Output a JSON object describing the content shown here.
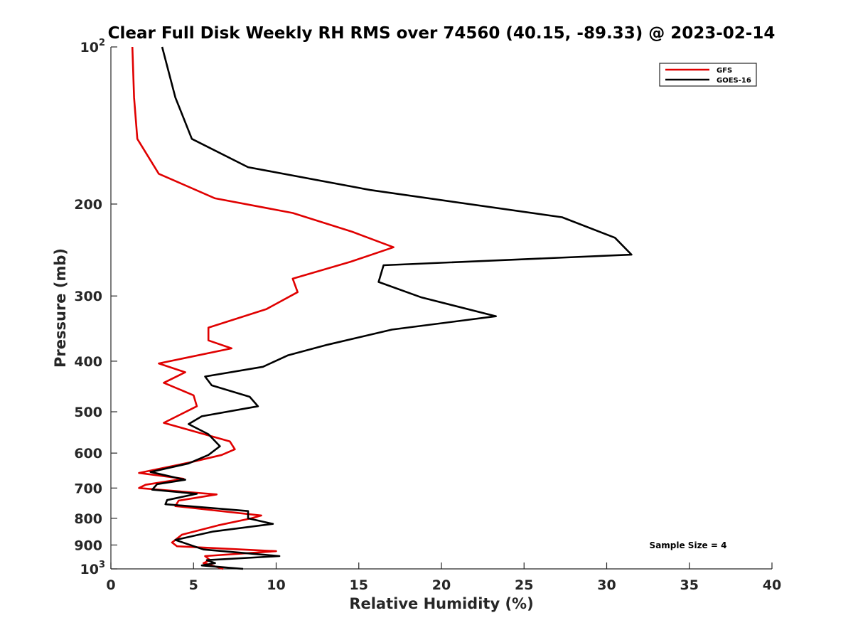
{
  "chart_data": {
    "type": "line",
    "title": "Clear Full Disk Weekly RH RMS over 74560 (40.15, -89.33) @ 2023-02-14",
    "xlabel": "Relative Humidity (%)",
    "ylabel": "Pressure (mb)",
    "xlim": [
      0,
      40
    ],
    "ylim": [
      100,
      1000
    ],
    "y_scale": "log",
    "y_reversed": true,
    "x_ticks": [
      0,
      5,
      10,
      15,
      20,
      25,
      30,
      35,
      40
    ],
    "y_ticks": [
      {
        "value": 100,
        "label": "10",
        "sup": "2"
      },
      {
        "value": 200,
        "label": "200"
      },
      {
        "value": 300,
        "label": "300"
      },
      {
        "value": 400,
        "label": "400"
      },
      {
        "value": 500,
        "label": "500"
      },
      {
        "value": 600,
        "label": "600"
      },
      {
        "value": 700,
        "label": "700"
      },
      {
        "value": 800,
        "label": "800"
      },
      {
        "value": 900,
        "label": "900"
      },
      {
        "value": 1000,
        "label": "10",
        "sup": "3"
      }
    ],
    "grid": false,
    "legend_position": "top-right",
    "annotation": "Sample Size = 4",
    "series": [
      {
        "name": "GFS",
        "color": "#e00000",
        "points": [
          [
            1.3,
            100
          ],
          [
            1.4,
            125
          ],
          [
            1.6,
            150
          ],
          [
            2.9,
            175
          ],
          [
            6.3,
            195
          ],
          [
            11.0,
            208
          ],
          [
            14.6,
            226
          ],
          [
            17.1,
            242
          ],
          [
            14.5,
            258
          ],
          [
            11.0,
            278
          ],
          [
            11.3,
            295
          ],
          [
            9.4,
            318
          ],
          [
            5.9,
            345
          ],
          [
            5.9,
            365
          ],
          [
            7.3,
            378
          ],
          [
            2.9,
            404
          ],
          [
            4.5,
            420
          ],
          [
            3.2,
            440
          ],
          [
            5.0,
            465
          ],
          [
            5.2,
            488
          ],
          [
            3.2,
            525
          ],
          [
            7.2,
            570
          ],
          [
            7.5,
            590
          ],
          [
            6.7,
            605
          ],
          [
            4.8,
            625
          ],
          [
            1.7,
            655
          ],
          [
            4.4,
            672
          ],
          [
            2.1,
            690
          ],
          [
            1.7,
            700
          ],
          [
            6.4,
            720
          ],
          [
            4.1,
            740
          ],
          [
            3.9,
            758
          ],
          [
            9.1,
            790
          ],
          [
            8.5,
            800
          ],
          [
            6.5,
            825
          ],
          [
            4.3,
            860
          ],
          [
            3.7,
            890
          ],
          [
            4.0,
            905
          ],
          [
            10.0,
            925
          ],
          [
            5.7,
            945
          ],
          [
            6.0,
            962
          ],
          [
            5.6,
            975
          ],
          [
            6.8,
            1000
          ]
        ]
      },
      {
        "name": "GOES-16",
        "color": "#000000",
        "points": [
          [
            3.1,
            100
          ],
          [
            3.9,
            125
          ],
          [
            4.9,
            150
          ],
          [
            8.3,
            170
          ],
          [
            15.7,
            188
          ],
          [
            27.3,
            212
          ],
          [
            30.5,
            232
          ],
          [
            31.5,
            250
          ],
          [
            16.5,
            262
          ],
          [
            16.2,
            282
          ],
          [
            18.8,
            302
          ],
          [
            23.3,
            328
          ],
          [
            17.0,
            348
          ],
          [
            13.1,
            372
          ],
          [
            10.7,
            390
          ],
          [
            9.2,
            410
          ],
          [
            5.7,
            428
          ],
          [
            6.1,
            445
          ],
          [
            8.4,
            468
          ],
          [
            8.9,
            488
          ],
          [
            5.5,
            510
          ],
          [
            4.7,
            528
          ],
          [
            5.9,
            552
          ],
          [
            6.6,
            582
          ],
          [
            5.9,
            605
          ],
          [
            4.7,
            628
          ],
          [
            2.4,
            652
          ],
          [
            4.5,
            675
          ],
          [
            2.8,
            688
          ],
          [
            2.5,
            705
          ],
          [
            5.2,
            718
          ],
          [
            3.4,
            738
          ],
          [
            3.3,
            752
          ],
          [
            8.3,
            775
          ],
          [
            8.3,
            800
          ],
          [
            9.8,
            820
          ],
          [
            6.2,
            848
          ],
          [
            3.9,
            880
          ],
          [
            5.6,
            918
          ],
          [
            10.2,
            945
          ],
          [
            5.8,
            962
          ],
          [
            6.3,
            975
          ],
          [
            5.5,
            985
          ],
          [
            8.0,
            1000
          ]
        ]
      }
    ]
  }
}
